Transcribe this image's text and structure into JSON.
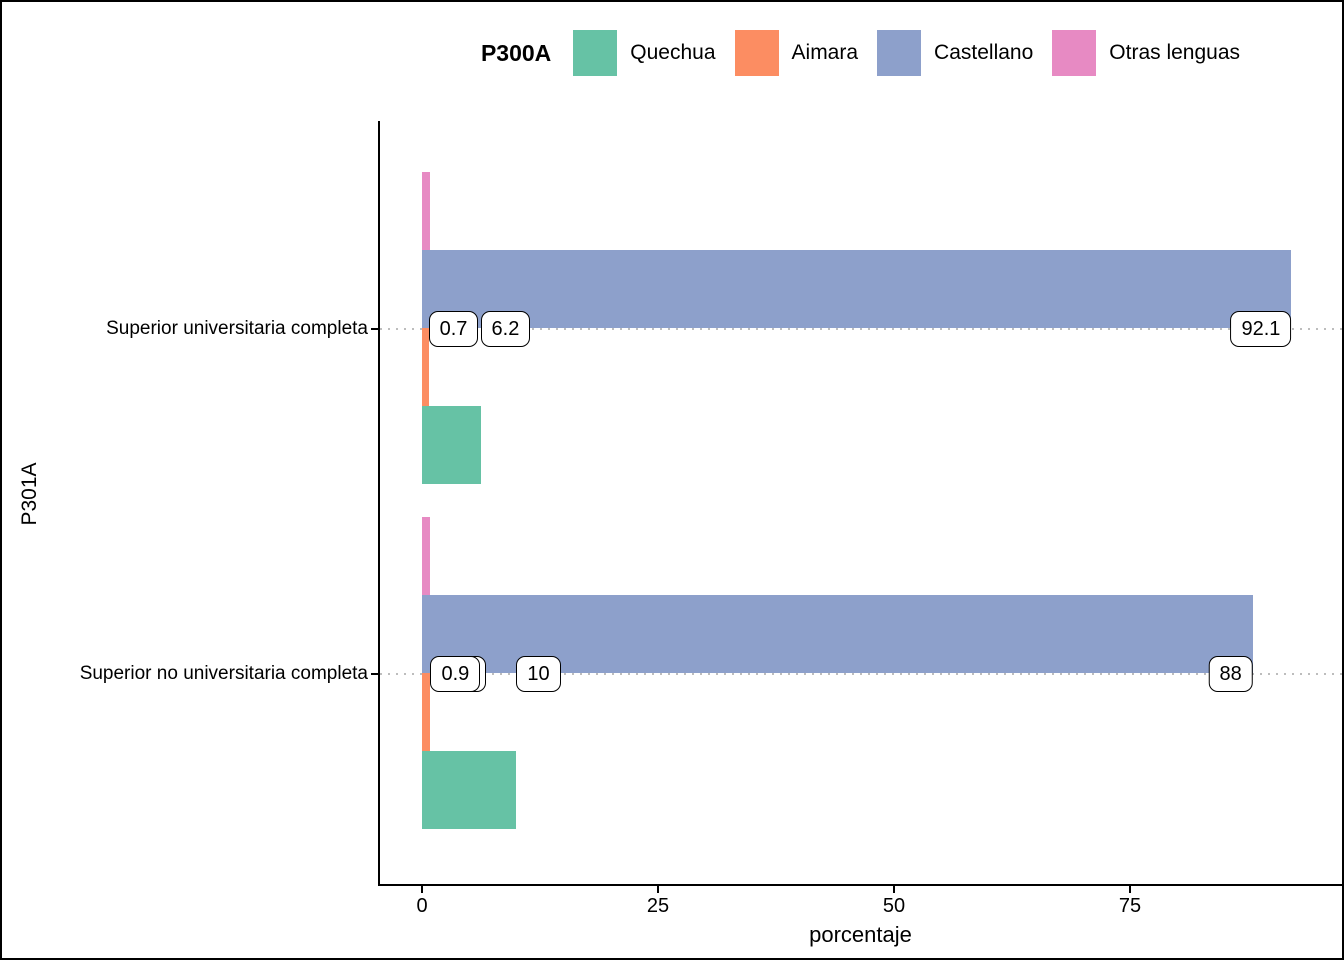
{
  "figure": {
    "kind": "ggplot horizontal grouped bar chart",
    "background_color": "#ffffff",
    "frame_color": "#000000",
    "grid_style": "dotted horizontal line at each category center",
    "grid_color": "#bdbdbd"
  },
  "legend": {
    "title": "P300A",
    "position": "top",
    "items": [
      {
        "label": "Quechua",
        "color": "#66C2A5"
      },
      {
        "label": "Aimara",
        "color": "#FC8D62"
      },
      {
        "label": "Castellano",
        "color": "#8DA0CB"
      },
      {
        "label": "Otras lenguas",
        "color": "#E78AC3"
      }
    ]
  },
  "axes": {
    "x_title": "porcentaje",
    "y_title": "P301A",
    "x_tick_labels": [
      "0",
      "25",
      "50",
      "75"
    ],
    "x_tick_values": [
      0,
      25,
      50,
      75
    ]
  },
  "chart_data": {
    "type": "bar",
    "orientation": "horizontal",
    "title": "",
    "xlabel": "porcentaje",
    "ylabel": "P301A",
    "xlim": [
      0,
      97
    ],
    "legend_title": "P300A",
    "legend_position": "top",
    "grid": "dotted horizontal major gridline per category",
    "categories": [
      "Superior universitaria completa",
      "Superior no universitaria completa"
    ],
    "bar_order_top_to_bottom": [
      "Otras lenguas",
      "Castellano",
      "Aimara",
      "Quechua"
    ],
    "series": [
      {
        "name": "Quechua",
        "color": "#66C2A5",
        "values": [
          6.2,
          10
        ],
        "labels": [
          "6.2",
          "10"
        ],
        "label_align": "left"
      },
      {
        "name": "Aimara",
        "color": "#FC8D62",
        "values": [
          0.7,
          0.9
        ],
        "labels": [
          "0.7",
          "0.9"
        ],
        "label_align": "left"
      },
      {
        "name": "Castellano",
        "color": "#8DA0CB",
        "values": [
          92.1,
          88
        ],
        "labels": [
          "92.1",
          "88"
        ],
        "label_align": "right"
      },
      {
        "name": "Otras lenguas",
        "color": "#E78AC3",
        "values": [
          0.8,
          0.8
        ],
        "labels": [
          null,
          null
        ],
        "note": "bar length estimated; value labels occluded behind other label boxes"
      }
    ],
    "occluded_label_peek": {
      "category_index": 1,
      "comment": "edge of a hidden label box visible right of the 0.9 box"
    }
  }
}
